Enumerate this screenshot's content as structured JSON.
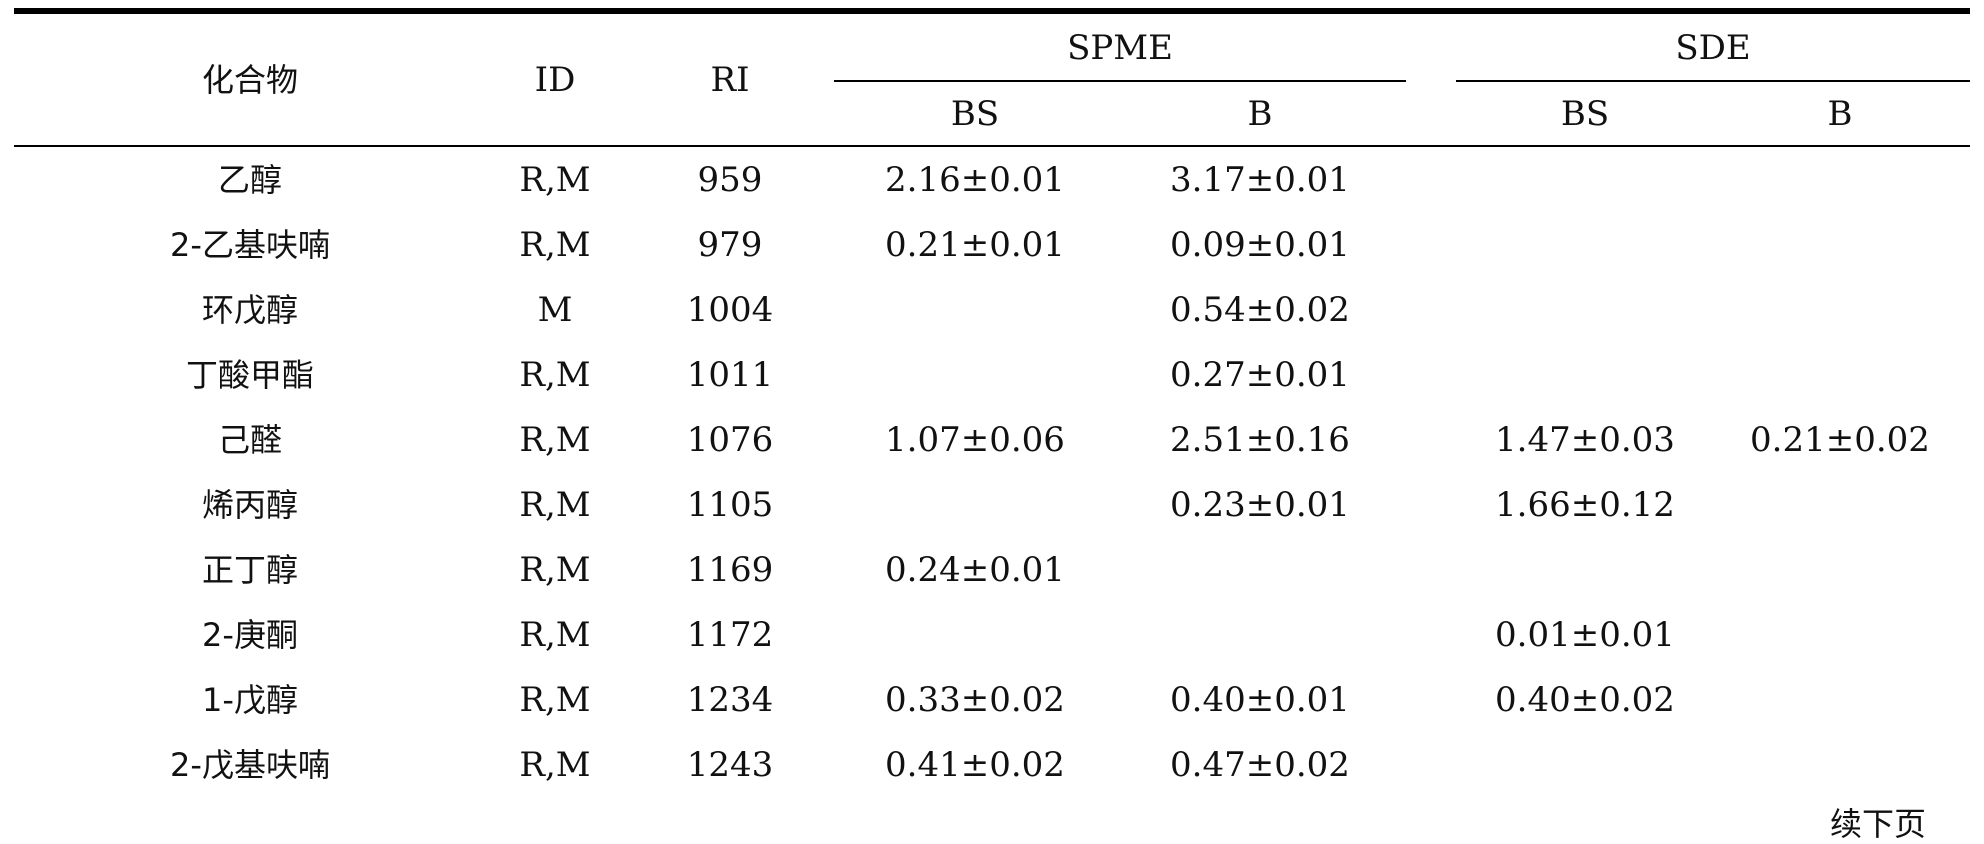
{
  "table": {
    "headers": {
      "compound": "化合物",
      "id": "ID",
      "ri": "RI",
      "spme": "SPME",
      "sde": "SDE",
      "spme_bs": "BS",
      "spme_b": "B",
      "sde_bs": "BS",
      "sde_b": "B"
    },
    "rows": [
      {
        "compound": "乙醇",
        "id": "R,M",
        "ri": "959",
        "spme_bs": "2.16±0.01",
        "spme_b": "3.17±0.01",
        "sde_bs": "",
        "sde_b": ""
      },
      {
        "compound": "2-乙基呋喃",
        "id": "R,M",
        "ri": "979",
        "spme_bs": "0.21±0.01",
        "spme_b": "0.09±0.01",
        "sde_bs": "",
        "sde_b": ""
      },
      {
        "compound": "环戊醇",
        "id": "M",
        "ri": "1004",
        "spme_bs": "",
        "spme_b": "0.54±0.02",
        "sde_bs": "",
        "sde_b": ""
      },
      {
        "compound": "丁酸甲酯",
        "id": "R,M",
        "ri": "1011",
        "spme_bs": "",
        "spme_b": "0.27±0.01",
        "sde_bs": "",
        "sde_b": ""
      },
      {
        "compound": "己醛",
        "id": "R,M",
        "ri": "1076",
        "spme_bs": "1.07±0.06",
        "spme_b": "2.51±0.16",
        "sde_bs": "1.47±0.03",
        "sde_b": "0.21±0.02"
      },
      {
        "compound": "烯丙醇",
        "id": "R,M",
        "ri": "1105",
        "spme_bs": "",
        "spme_b": "0.23±0.01",
        "sde_bs": "1.66±0.12",
        "sde_b": ""
      },
      {
        "compound": "正丁醇",
        "id": "R,M",
        "ri": "1169",
        "spme_bs": "0.24±0.01",
        "spme_b": "",
        "sde_bs": "",
        "sde_b": ""
      },
      {
        "compound": "2-庚酮",
        "id": "R,M",
        "ri": "1172",
        "spme_bs": "",
        "spme_b": "",
        "sde_bs": "0.01±0.01",
        "sde_b": ""
      },
      {
        "compound": "1-戊醇",
        "id": "R,M",
        "ri": "1234",
        "spme_bs": "0.33±0.02",
        "spme_b": "0.40±0.01",
        "sde_bs": "0.40±0.02",
        "sde_b": ""
      },
      {
        "compound": "2-戊基呋喃",
        "id": "R,M",
        "ri": "1243",
        "spme_bs": "0.41±0.02",
        "spme_b": "0.47±0.02",
        "sde_bs": "",
        "sde_b": ""
      }
    ],
    "continued_note": "续下页"
  }
}
